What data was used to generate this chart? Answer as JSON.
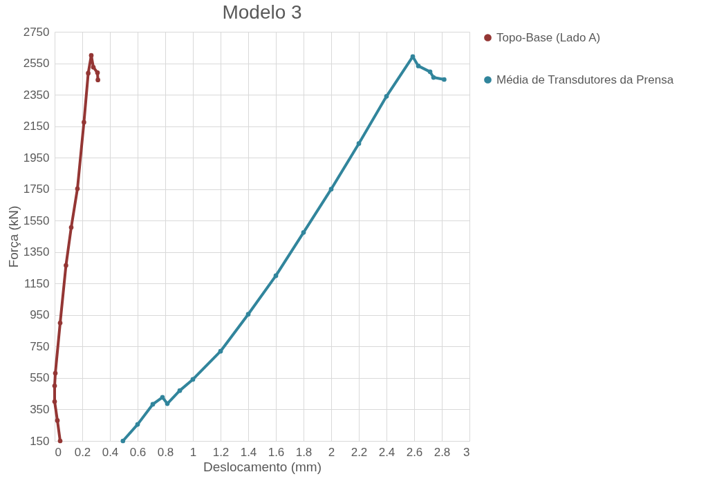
{
  "chart_data": {
    "type": "line",
    "title": "Modelo 3",
    "xlabel": "Deslocamento (mm)",
    "ylabel": "Força (kN)",
    "xlim": [
      0,
      3
    ],
    "xticks": [
      0,
      0.2,
      0.4,
      0.6,
      0.8,
      1,
      1.2,
      1.4,
      1.6,
      1.8,
      2,
      2.2,
      2.4,
      2.6,
      2.8,
      3
    ],
    "ylim": [
      150,
      2750
    ],
    "yticks": [
      150,
      350,
      550,
      750,
      950,
      1150,
      1350,
      1550,
      1750,
      1950,
      2150,
      2350,
      2550,
      2750
    ],
    "grid": true,
    "legend": "right",
    "marker": "circle",
    "series": [
      {
        "name": "Topo-Base (Lado A)",
        "color": "#943634",
        "x": [
          0.04,
          0.02,
          0,
          0,
          0.005,
          0.04,
          0.082,
          0.12,
          0.165,
          0.212,
          0.243,
          0.265,
          0.28,
          0.31,
          0.313
        ],
        "values": [
          150,
          280,
          400,
          500,
          580,
          900,
          1265,
          1507,
          1753,
          2175,
          2487,
          2600,
          2525,
          2490,
          2444
        ]
      },
      {
        "name": "Média de Transdutores da Prensa",
        "color": "#31859c",
        "x": [
          0.494,
          0.6,
          0.71,
          0.78,
          0.815,
          0.905,
          1.0,
          1.2,
          1.4,
          1.6,
          1.8,
          2.0,
          2.2,
          2.4,
          2.59,
          2.63,
          2.715,
          2.74,
          2.817
        ],
        "values": [
          150,
          255,
          383,
          427,
          387,
          470,
          541,
          720,
          955,
          1200,
          1475,
          1750,
          2040,
          2340,
          2592,
          2533,
          2496,
          2460,
          2447
        ]
      }
    ]
  }
}
